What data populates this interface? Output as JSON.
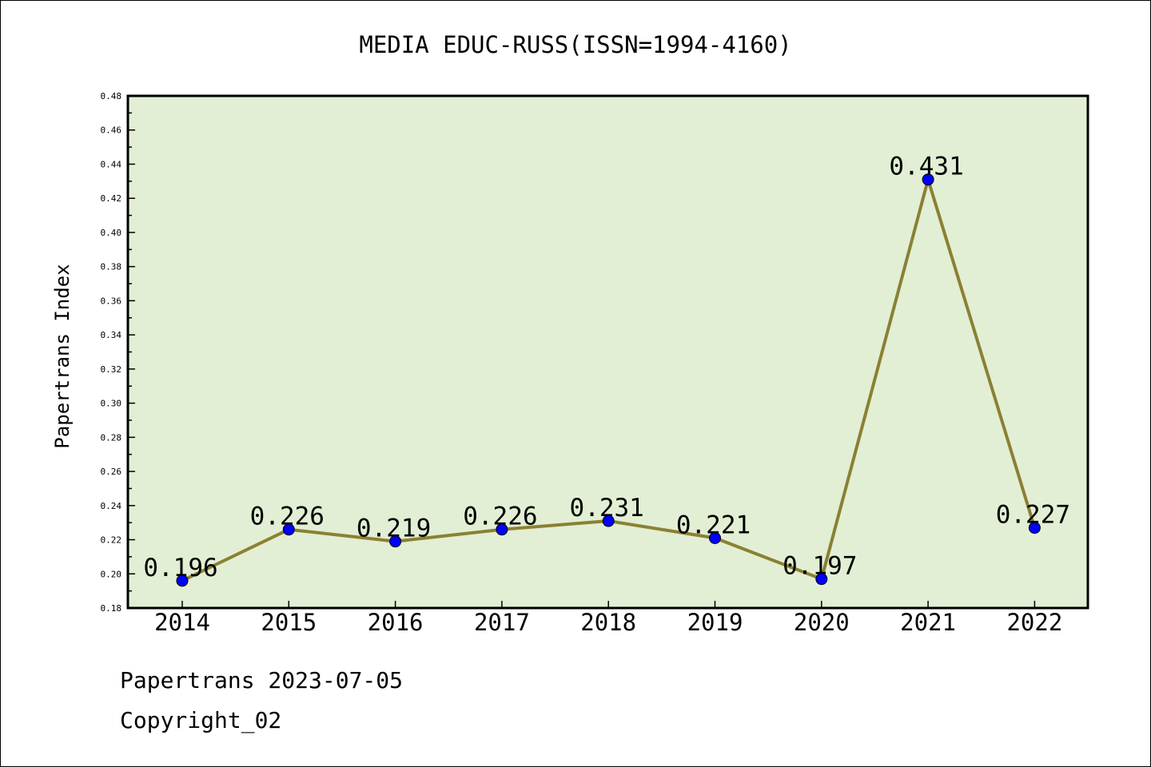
{
  "chart_data": {
    "type": "line",
    "title": "MEDIA EDUC-RUSS(ISSN=1994-4160)",
    "ylabel": "Papertrans Index",
    "xlabel": "",
    "categories": [
      "2014",
      "2015",
      "2016",
      "2017",
      "2018",
      "2019",
      "2020",
      "2021",
      "2022"
    ],
    "series": [
      {
        "values": [
          0.196,
          0.226,
          0.219,
          0.226,
          0.231,
          0.221,
          0.197,
          0.431,
          0.227
        ]
      }
    ],
    "data_labels": [
      "0.196",
      "0.226",
      "0.219",
      "0.226",
      "0.231",
      "0.221",
      "0.197",
      "0.431",
      "0.227"
    ],
    "ylim": [
      0.18,
      0.48
    ],
    "yticks": [
      "0.18",
      "0.20",
      "0.22",
      "0.24",
      "0.26",
      "0.28",
      "0.30",
      "0.32",
      "0.34",
      "0.36",
      "0.38",
      "0.40",
      "0.42",
      "0.44",
      "0.46",
      "0.48"
    ],
    "grid": false,
    "legend": "none",
    "colors": {
      "plot_background": "#e2efd4",
      "line": "#8b8033",
      "marker": "#0000ff"
    }
  },
  "footer": {
    "date_line": "Papertrans 2023-07-05",
    "copyright": "Copyright_02"
  }
}
